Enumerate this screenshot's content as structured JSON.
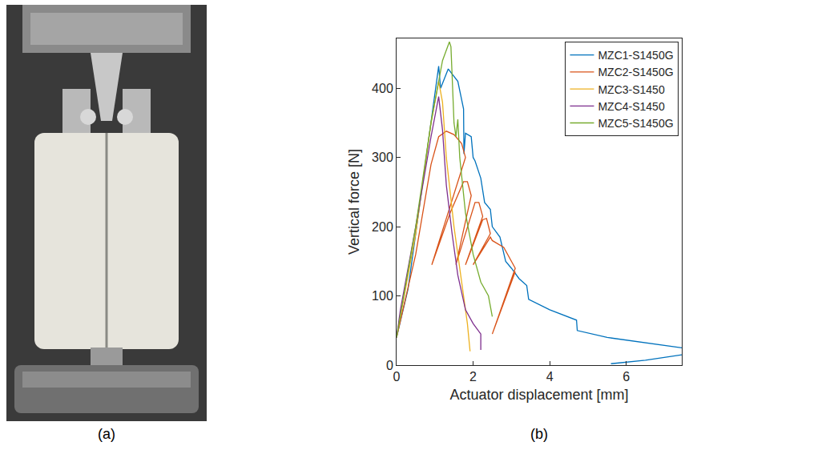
{
  "panel_labels": [
    "(a)",
    "(b)"
  ],
  "chart_data": {
    "type": "line",
    "x_label": "Actuator displacement [mm]",
    "y_label": "Vertical force [N]",
    "xlim": [
      0,
      7.45
    ],
    "ylim": [
      0,
      472
    ],
    "xticks": [
      0,
      2,
      4,
      6
    ],
    "yticks": [
      0,
      100,
      200,
      300,
      400
    ],
    "grid": false,
    "legend": "top right",
    "series": [
      {
        "name": "MZC1-S1450G",
        "color": "#0072BD",
        "x": [
          0,
          0.3,
          0.6,
          0.9,
          1.1,
          1.15,
          1.35,
          1.6,
          1.75,
          1.76,
          1.8,
          1.95,
          2.0,
          2.05,
          2.2,
          2.3,
          2.45,
          2.5,
          2.7,
          2.85,
          3.0,
          3.2,
          3.4,
          3.45,
          4.0,
          4.7,
          4.72,
          5.5,
          6.5,
          7.45,
          null,
          5.6,
          6.5,
          7.45
        ],
        "values": [
          40,
          110,
          230,
          350,
          432,
          400,
          428,
          410,
          370,
          305,
          335,
          330,
          300,
          295,
          270,
          235,
          225,
          200,
          185,
          150,
          140,
          125,
          115,
          95,
          80,
          65,
          50,
          40,
          32,
          25,
          null,
          2,
          7,
          15
        ]
      },
      {
        "name": "MZC2-S1450G",
        "color": "#D95319",
        "x": [
          0,
          0.5,
          0.9,
          1.1,
          1.3,
          1.5,
          1.7,
          1.8,
          0.92,
          1.4,
          1.75,
          1.85,
          1.95,
          1.55,
          2.05,
          2.15,
          2.25,
          1.8,
          2.25,
          2.35,
          2.45,
          2.0,
          2.45,
          2.5,
          2.8,
          3.0,
          3.1,
          2.5,
          3.1
        ],
        "values": [
          40,
          160,
          290,
          330,
          338,
          333,
          320,
          300,
          145,
          220,
          265,
          265,
          245,
          145,
          235,
          235,
          215,
          145,
          210,
          212,
          190,
          145,
          185,
          180,
          170,
          150,
          140,
          45,
          135
        ]
      },
      {
        "name": "MZC3-S1450",
        "color": "#EDB120",
        "x": [
          0,
          0.5,
          0.9,
          1.1,
          1.2,
          1.3,
          1.5,
          1.7,
          1.85,
          1.92
        ],
        "values": [
          40,
          190,
          350,
          410,
          380,
          300,
          200,
          120,
          60,
          20
        ]
      },
      {
        "name": "MZC4-S1450",
        "color": "#7E2F8E",
        "x": [
          0,
          0.1,
          0.5,
          0.9,
          1.1,
          1.2,
          1.3,
          1.45,
          1.6,
          1.8,
          2.0,
          2.2,
          2.2
        ],
        "values": [
          40,
          80,
          200,
          330,
          388,
          340,
          260,
          190,
          130,
          80,
          60,
          45,
          22
        ]
      },
      {
        "name": "MZC5-S1450G",
        "color": "#77AC30",
        "x": [
          0,
          0.5,
          0.9,
          1.2,
          1.38,
          1.42,
          1.45,
          1.5,
          1.55,
          1.6,
          1.65,
          1.8,
          2.0,
          2.2,
          2.4,
          2.5
        ],
        "values": [
          40,
          200,
          350,
          440,
          467,
          460,
          420,
          350,
          330,
          355,
          300,
          220,
          160,
          120,
          100,
          70
        ]
      }
    ]
  }
}
